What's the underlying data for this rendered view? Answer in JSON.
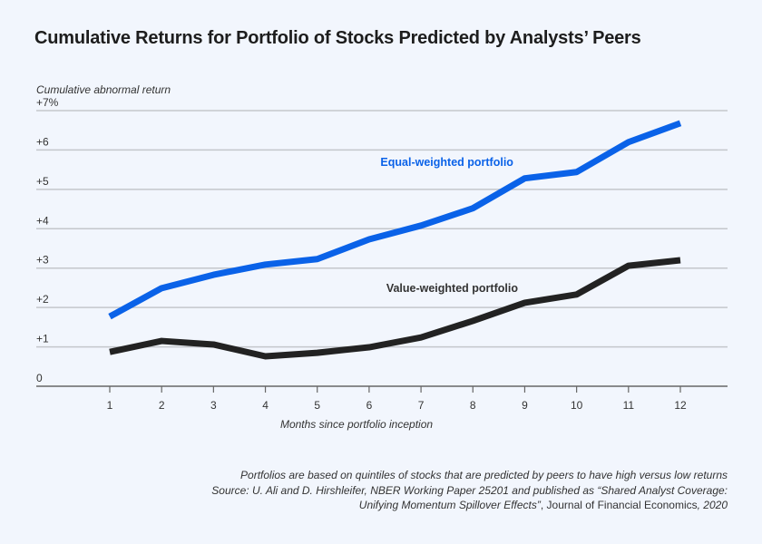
{
  "chart_data": {
    "type": "line",
    "title": "Cumulative Returns for Portfolio of Stocks Predicted by Analysts’ Peers",
    "ylabel": "Cumulative abnormal return",
    "xlabel": "Months since portfolio inception",
    "ylim": [
      0,
      7
    ],
    "y_ticks": [
      0,
      1,
      2,
      3,
      4,
      5,
      6,
      7
    ],
    "y_tick_labels": [
      "0",
      "+1",
      "+2",
      "+3",
      "+4",
      "+5",
      "+6",
      "+7%"
    ],
    "x": [
      1,
      2,
      3,
      4,
      5,
      6,
      7,
      8,
      9,
      10,
      11,
      12
    ],
    "x_tick_labels": [
      "1",
      "2",
      "3",
      "4",
      "5",
      "6",
      "7",
      "8",
      "9",
      "10",
      "11",
      "12"
    ],
    "grid": "horizontal",
    "series": [
      {
        "name": "Equal-weighted portfolio",
        "color": "#0a62e8",
        "values": [
          1.77,
          2.49,
          2.83,
          3.09,
          3.23,
          3.73,
          4.08,
          4.52,
          5.28,
          5.44,
          6.2,
          6.68
        ]
      },
      {
        "name": "Value-weighted portfolio",
        "color": "#222222",
        "values": [
          0.87,
          1.15,
          1.06,
          0.76,
          0.85,
          0.99,
          1.24,
          1.66,
          2.12,
          2.33,
          3.06,
          3.2
        ]
      }
    ],
    "annotations": [
      {
        "text": "Equal-weighted portfolio",
        "series": 0,
        "x": 7.5,
        "y": 5.6
      },
      {
        "text": "Value-weighted portfolio",
        "series": 1,
        "x": 7.6,
        "y": 2.4
      }
    ]
  },
  "notes": {
    "line1": "Portfolios are based on quintiles of stocks that are predicted by peers to have high versus low returns",
    "line2": "Source: U. Ali and D. Hirshleifer, NBER Working Paper 25201 and published as “Shared Analyst Coverage:",
    "line3_italic": "Unifying Momentum Spillover Effects”",
    "line3_sep": ", ",
    "line3_journal": "Journal of Financial Economics",
    "line3_year": ", 2020"
  }
}
